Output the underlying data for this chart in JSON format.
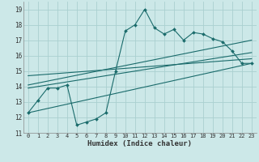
{
  "xlabel": "Humidex (Indice chaleur)",
  "bg_color": "#cce8e8",
  "grid_color": "#aad0d0",
  "line_color": "#1a6b6b",
  "xlim": [
    -0.5,
    23.5
  ],
  "ylim": [
    11,
    19.5
  ],
  "xticks": [
    0,
    1,
    2,
    3,
    4,
    5,
    6,
    7,
    8,
    9,
    10,
    11,
    12,
    13,
    14,
    15,
    16,
    17,
    18,
    19,
    20,
    21,
    22,
    23
  ],
  "yticks": [
    11,
    12,
    13,
    14,
    15,
    16,
    17,
    18,
    19
  ],
  "series1_x": [
    0,
    1,
    2,
    3,
    4,
    5,
    6,
    7,
    8,
    9,
    10,
    11,
    12,
    13,
    14,
    15,
    16,
    17,
    18,
    19,
    20,
    21,
    22,
    23
  ],
  "series1_y": [
    12.3,
    13.1,
    13.9,
    13.9,
    14.1,
    11.5,
    11.7,
    11.9,
    12.3,
    15.0,
    17.6,
    18.0,
    19.0,
    17.8,
    17.4,
    17.7,
    17.0,
    17.5,
    17.4,
    17.1,
    16.9,
    16.3,
    15.5,
    15.5
  ],
  "series2_x": [
    0,
    23
  ],
  "series2_y": [
    12.3,
    15.5
  ],
  "series3_x": [
    0,
    23
  ],
  "series3_y": [
    13.9,
    16.2
  ],
  "series4_x": [
    0,
    23
  ],
  "series4_y": [
    14.7,
    15.8
  ],
  "series5_x": [
    0,
    23
  ],
  "series5_y": [
    14.1,
    17.0
  ]
}
